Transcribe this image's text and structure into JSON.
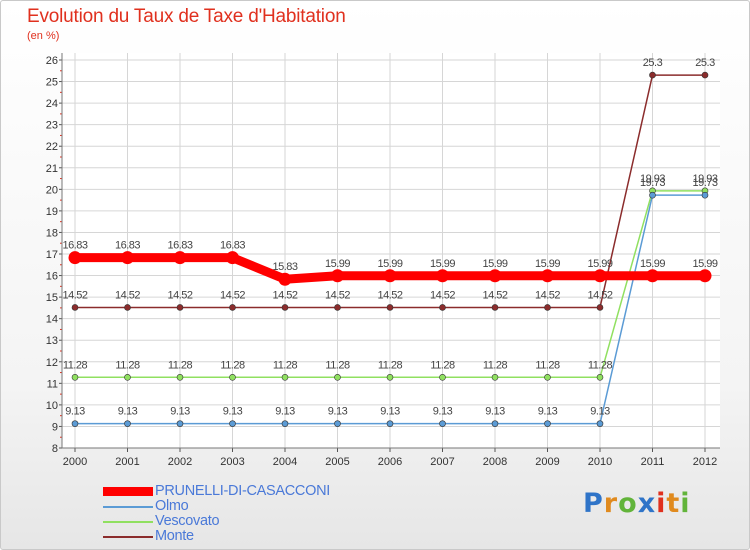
{
  "logo": [
    "P",
    "r",
    "o",
    "x",
    "i",
    "t",
    "i"
  ],
  "chart_data": {
    "type": "line",
    "title": "Evolution du Taux de Taxe d'Habitation",
    "unit": "(en %)",
    "x": [
      "2000",
      "2001",
      "2002",
      "2003",
      "2004",
      "2005",
      "2006",
      "2007",
      "2008",
      "2009",
      "2010",
      "2011",
      "2012"
    ],
    "ylim": [
      8,
      26
    ],
    "yticks": [
      8,
      9,
      10,
      11,
      12,
      13,
      14,
      15,
      16,
      17,
      18,
      19,
      20,
      21,
      22,
      23,
      24,
      25,
      26
    ],
    "grid": true,
    "legend": "bottom-left",
    "series": [
      {
        "name": "PRUNELLI-DI-CASACCONI",
        "color": "#ff0000",
        "values": [
          16.83,
          16.83,
          16.83,
          16.83,
          15.83,
          15.99,
          15.99,
          15.99,
          15.99,
          15.99,
          15.99,
          15.99,
          15.99
        ]
      },
      {
        "name": "Olmo",
        "color": "#5b9bd5",
        "values": [
          9.13,
          9.13,
          9.13,
          9.13,
          9.13,
          9.13,
          9.13,
          9.13,
          9.13,
          9.13,
          9.13,
          19.73,
          19.73
        ]
      },
      {
        "name": "Vescovato",
        "color": "#90e060",
        "values": [
          11.28,
          11.28,
          11.28,
          11.28,
          11.28,
          11.28,
          11.28,
          11.28,
          11.28,
          11.28,
          11.28,
          19.93,
          19.93
        ]
      },
      {
        "name": "Monte",
        "color": "#8b2c2c",
        "values": [
          14.52,
          14.52,
          14.52,
          14.52,
          14.52,
          14.52,
          14.52,
          14.52,
          14.52,
          14.52,
          14.52,
          25.3,
          25.3
        ]
      }
    ],
    "labels": [
      {
        "series": 0,
        "text": [
          "16.83",
          "16.83",
          "16.83",
          "16.83",
          "15.83",
          "15.99",
          "15.99",
          "15.99",
          "15.99",
          "15.99",
          "15.99",
          "15.99",
          "15.99"
        ]
      },
      {
        "series": 1,
        "text": [
          "9.13",
          "9.13",
          "9.13",
          "9.13",
          "9.13",
          "9.13",
          "9.13",
          "9.13",
          "9.13",
          "9.13",
          "9.13",
          "19.73",
          "19.73"
        ]
      },
      {
        "series": 2,
        "text": [
          "11.28",
          "11.28",
          "11.28",
          "11.28",
          "11.28",
          "11.28",
          "11.28",
          "11.28",
          "11.28",
          "11.28",
          "11.28",
          "19.93",
          "19.93"
        ]
      },
      {
        "series": 3,
        "text": [
          "14.52",
          "14.52",
          "14.52",
          "14.52",
          "14.52",
          "14.52",
          "14.52",
          "14.52",
          "14.52",
          "14.52",
          "14.52",
          "25.3",
          "25.3"
        ]
      }
    ]
  }
}
